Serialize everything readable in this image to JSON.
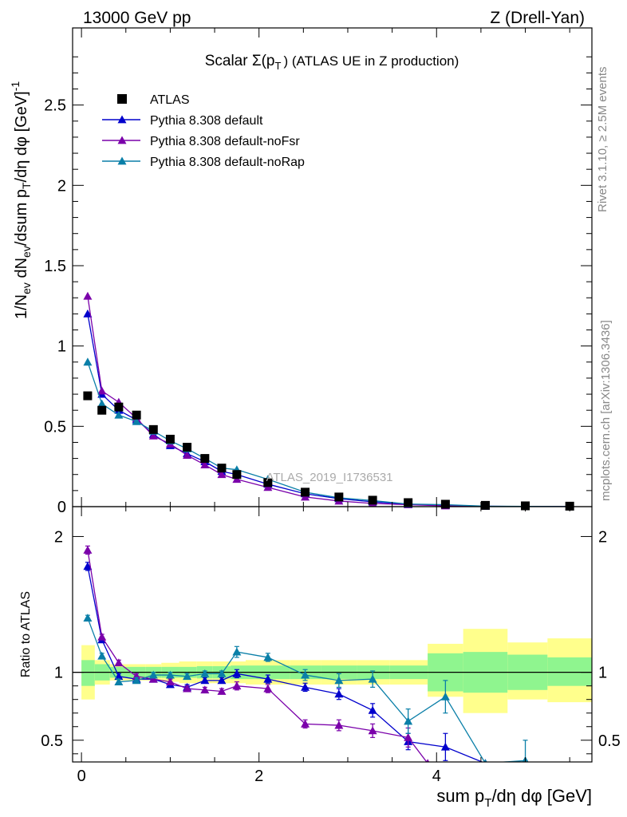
{
  "header": {
    "left": "13000 GeV pp",
    "right": "Z (Drell-Yan)"
  },
  "side_labels": {
    "rivet": "Rivet 3.1.10, ≥ 2.5M events",
    "mcplots": "mcplots.cern.ch [arXiv:1306.3436]"
  },
  "colors": {
    "atlas": "#000000",
    "default": "#0000cc",
    "noFsr": "#7a00aa",
    "noRap": "#0a7fa8",
    "band_inner": "#8ff58f",
    "band_outer": "#ffff8c"
  },
  "chart_data": [
    {
      "type": "scatter",
      "panel": "main",
      "title_prefix": "Scalar Σ(p",
      "title_sub": "T",
      "title_suffix": ") (ATLAS UE in Z production)",
      "ylabel": "1/N_ev dN_ev/dsum p_T/dη dφ [GeV]^-1",
      "xlim": [
        -0.1,
        5.75
      ],
      "ylim": [
        0,
        2.98
      ],
      "yticks": [
        0,
        0.5,
        1,
        1.5,
        2,
        2.5
      ],
      "ytick_labels": [
        "0",
        "0.5",
        "1",
        "1.5",
        "2",
        "2.5"
      ],
      "watermark": "ATLAS_2019_I1736531",
      "legend": [
        {
          "key": "atlas",
          "label": "ATLAS",
          "marker": "square"
        },
        {
          "key": "default",
          "label": "Pythia 8.308 default",
          "marker": "triangle"
        },
        {
          "key": "noFsr",
          "label": "Pythia 8.308 default-noFsr",
          "marker": "triangle"
        },
        {
          "key": "noRap",
          "label": "Pythia 8.308 default-noRap",
          "marker": "triangle"
        }
      ],
      "series": [
        {
          "key": "atlas",
          "name": "ATLAS",
          "x": [
            0.07,
            0.23,
            0.42,
            0.62,
            0.81,
            1.0,
            1.19,
            1.39,
            1.58,
            1.75,
            2.1,
            2.52,
            2.9,
            3.28,
            3.68,
            4.1,
            4.55,
            5.0,
            5.5
          ],
          "y": [
            0.69,
            0.6,
            0.62,
            0.57,
            0.48,
            0.42,
            0.37,
            0.3,
            0.24,
            0.2,
            0.15,
            0.09,
            0.06,
            0.04,
            0.025,
            0.015,
            0.008,
            0.005,
            0.003
          ]
        },
        {
          "key": "default",
          "name": "Pythia 8.308 default",
          "x": [
            0.07,
            0.23,
            0.42,
            0.62,
            0.81,
            1.0,
            1.19,
            1.39,
            1.58,
            1.75,
            2.1,
            2.52,
            2.9,
            3.28,
            3.68,
            4.1,
            4.55,
            5.0,
            5.5
          ],
          "y": [
            1.2,
            0.7,
            0.6,
            0.54,
            0.45,
            0.38,
            0.33,
            0.28,
            0.22,
            0.2,
            0.14,
            0.08,
            0.05,
            0.03,
            0.015,
            0.008,
            0.003,
            0.001,
            0.0005
          ],
          "err": [
            0.02,
            0.01,
            0.01,
            0.01,
            0.01,
            0.01,
            0.01,
            0.01,
            0.01,
            0.01,
            0.005,
            0.005,
            0,
            0,
            0,
            0,
            0,
            0,
            0
          ]
        },
        {
          "key": "noFsr",
          "name": "Pythia 8.308 default-noFsr",
          "x": [
            0.07,
            0.23,
            0.42,
            0.62,
            0.81,
            1.0,
            1.19,
            1.39,
            1.58,
            1.75,
            2.1,
            2.52,
            2.9,
            3.28,
            3.68,
            4.1,
            4.55,
            5.0,
            5.5
          ],
          "y": [
            1.31,
            0.72,
            0.65,
            0.55,
            0.44,
            0.39,
            0.32,
            0.26,
            0.2,
            0.17,
            0.12,
            0.06,
            0.035,
            0.02,
            0.012,
            0.005,
            0.002,
            0.001,
            0.0005
          ],
          "err": [
            0.02,
            0.01,
            0.01,
            0.01,
            0.01,
            0.01,
            0.01,
            0.01,
            0.01,
            0.01,
            0.005,
            0.005,
            0,
            0,
            0,
            0,
            0,
            0,
            0
          ]
        },
        {
          "key": "noRap",
          "name": "Pythia 8.308 default-noRap",
          "x": [
            0.07,
            0.23,
            0.42,
            0.62,
            0.81,
            1.0,
            1.19,
            1.39,
            1.58,
            1.75,
            2.1,
            2.52,
            2.9,
            3.28,
            3.68,
            4.1,
            4.55,
            5.0,
            5.5
          ],
          "y": [
            0.9,
            0.64,
            0.57,
            0.53,
            0.47,
            0.41,
            0.36,
            0.3,
            0.24,
            0.23,
            0.17,
            0.09,
            0.055,
            0.038,
            0.016,
            0.012,
            0.003,
            0.002,
            0.0005
          ],
          "err": [
            0.02,
            0.01,
            0.01,
            0.01,
            0.01,
            0.01,
            0.01,
            0.01,
            0.01,
            0.01,
            0.005,
            0.005,
            0,
            0,
            0,
            0,
            0,
            0,
            0
          ]
        }
      ]
    },
    {
      "type": "line",
      "panel": "ratio",
      "ylabel": "Ratio to ATLAS",
      "xlabel": "sum p_T/dη dφ [GeV]",
      "xlim": [
        -0.1,
        5.75
      ],
      "ylim": [
        0.34,
        2.22
      ],
      "xticks": [
        0,
        2,
        4
      ],
      "xtick_labels": [
        "0",
        "2",
        "4"
      ],
      "yticks": [
        0.5,
        1,
        2
      ],
      "ytick_labels": [
        "0.5",
        "1",
        "2"
      ],
      "reference_line": 1,
      "bands": {
        "edges": [
          0,
          0.15,
          0.32,
          0.52,
          0.72,
          0.9,
          1.1,
          1.3,
          1.48,
          1.68,
          1.85,
          2.35,
          2.7,
          3.1,
          3.47,
          3.9,
          4.3,
          4.8,
          5.25,
          5.75
        ],
        "inner": [
          [
            0.9,
            1.09
          ],
          [
            0.94,
            1.06
          ],
          [
            0.96,
            1.04
          ],
          [
            0.96,
            1.04
          ],
          [
            0.96,
            1.04
          ],
          [
            0.96,
            1.04
          ],
          [
            0.96,
            1.04
          ],
          [
            0.955,
            1.045
          ],
          [
            0.955,
            1.045
          ],
          [
            0.95,
            1.05
          ],
          [
            0.95,
            1.05
          ],
          [
            0.95,
            1.05
          ],
          [
            0.95,
            1.05
          ],
          [
            0.95,
            1.05
          ],
          [
            0.95,
            1.05
          ],
          [
            0.86,
            1.14
          ],
          [
            0.85,
            1.15
          ],
          [
            0.87,
            1.13
          ],
          [
            0.9,
            1.11
          ]
        ],
        "outer": [
          [
            0.8,
            1.2
          ],
          [
            0.91,
            1.09
          ],
          [
            0.94,
            1.06
          ],
          [
            0.94,
            1.06
          ],
          [
            0.94,
            1.06
          ],
          [
            0.93,
            1.07
          ],
          [
            0.92,
            1.08
          ],
          [
            0.92,
            1.08
          ],
          [
            0.92,
            1.08
          ],
          [
            0.92,
            1.08
          ],
          [
            0.91,
            1.09
          ],
          [
            0.91,
            1.09
          ],
          [
            0.91,
            1.09
          ],
          [
            0.91,
            1.09
          ],
          [
            0.91,
            1.09
          ],
          [
            0.82,
            1.21
          ],
          [
            0.7,
            1.32
          ],
          [
            0.8,
            1.22
          ],
          [
            0.78,
            1.25
          ]
        ]
      },
      "series": [
        {
          "key": "default",
          "name": "Pythia 8.308 default",
          "x": [
            0.07,
            0.23,
            0.42,
            0.62,
            0.81,
            1.0,
            1.19,
            1.39,
            1.58,
            1.75,
            2.1,
            2.52,
            2.9,
            3.28,
            3.68,
            4.1,
            4.55
          ],
          "y": [
            1.78,
            1.24,
            0.97,
            0.95,
            0.95,
            0.91,
            0.89,
            0.94,
            0.94,
            0.99,
            0.95,
            0.89,
            0.84,
            0.72,
            0.49,
            0.45,
            0.33
          ],
          "err": [
            0.03,
            0.02,
            0.02,
            0.02,
            0.02,
            0.02,
            0.02,
            0.02,
            0.02,
            0.03,
            0.03,
            0.03,
            0.04,
            0.05,
            0.06,
            0.1,
            0
          ]
        },
        {
          "key": "noFsr",
          "name": "Pythia 8.308 default-noFsr",
          "x": [
            0.07,
            0.23,
            0.42,
            0.62,
            0.81,
            1.0,
            1.19,
            1.39,
            1.58,
            1.75,
            2.1,
            2.52,
            2.9,
            3.28,
            3.68,
            3.9
          ],
          "y": [
            1.9,
            1.26,
            1.07,
            0.97,
            0.95,
            0.93,
            0.88,
            0.87,
            0.86,
            0.9,
            0.88,
            0.62,
            0.61,
            0.57,
            0.52,
            0.33
          ],
          "err": [
            0.03,
            0.02,
            0.02,
            0.02,
            0.02,
            0.02,
            0.02,
            0.02,
            0.02,
            0.03,
            0.03,
            0.03,
            0.04,
            0.05,
            0.07,
            0
          ]
        },
        {
          "key": "noRap",
          "name": "Pythia 8.308 default-noRap",
          "x": [
            0.07,
            0.23,
            0.42,
            0.62,
            0.81,
            1.0,
            1.19,
            1.39,
            1.58,
            1.75,
            2.1,
            2.52,
            2.9,
            3.28,
            3.68,
            4.1,
            4.55,
            5.0
          ],
          "y": [
            1.4,
            1.12,
            0.93,
            0.94,
            0.98,
            0.98,
            0.97,
            0.99,
            0.99,
            1.15,
            1.11,
            0.98,
            0.94,
            0.95,
            0.64,
            0.82,
            0.33,
            0.35
          ],
          "err": [
            0.02,
            0.02,
            0.02,
            0.02,
            0.02,
            0.02,
            0.02,
            0.02,
            0.02,
            0.04,
            0.03,
            0.04,
            0.05,
            0.06,
            0.09,
            0.12,
            0,
            0.15
          ]
        }
      ]
    }
  ]
}
